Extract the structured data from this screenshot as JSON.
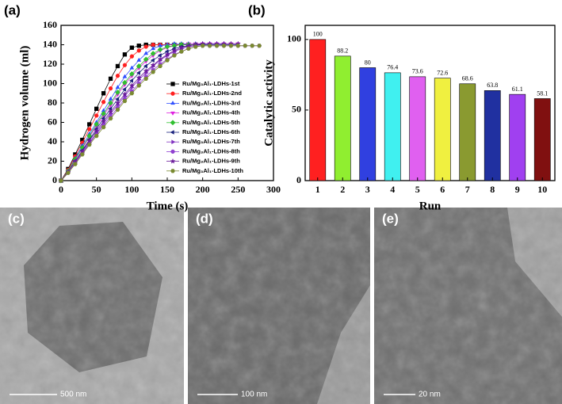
{
  "chart_data": [
    {
      "type": "line",
      "panel": "(a)",
      "x_label": "Time (s)",
      "y_label": "Hydrogen volume (ml)",
      "xlim": [
        0,
        300
      ],
      "xticks": [
        0,
        50,
        100,
        150,
        200,
        250,
        300
      ],
      "ylim": [
        0,
        160
      ],
      "yticks": [
        0,
        20,
        40,
        60,
        80,
        100,
        120,
        140,
        160
      ],
      "series": [
        {
          "name": "Ru/Mg₃Al₁-LDHs-1st",
          "color": "#000000",
          "marker": "square",
          "x": [
            0,
            10,
            20,
            30,
            40,
            50,
            60,
            70,
            80,
            90,
            100,
            110,
            120,
            130,
            140,
            150,
            160,
            170,
            180,
            190
          ],
          "values": [
            0,
            12,
            27,
            42,
            58,
            74,
            90,
            105,
            118,
            130,
            137,
            139,
            140,
            140,
            140,
            140,
            140,
            140,
            140,
            140
          ]
        },
        {
          "name": "Ru/Mg₃Al₁-LDHs-2nd",
          "color": "#ff2020",
          "marker": "circle",
          "x": [
            0,
            10,
            20,
            30,
            40,
            50,
            60,
            70,
            80,
            90,
            100,
            110,
            120,
            130,
            140,
            150,
            160,
            170,
            180,
            190,
            200
          ],
          "values": [
            0,
            11,
            25,
            39,
            53,
            67,
            81,
            95,
            108,
            119,
            128,
            134,
            138,
            140,
            140,
            140,
            140,
            140,
            140,
            140,
            140
          ]
        },
        {
          "name": "Ru/Mg₃Al₁-LDHs-3rd",
          "color": "#3050ff",
          "marker": "triangle-up",
          "x": [
            0,
            10,
            20,
            30,
            40,
            50,
            60,
            70,
            80,
            90,
            100,
            110,
            120,
            130,
            140,
            150,
            160,
            170,
            180,
            190,
            200,
            210,
            220,
            230
          ],
          "values": [
            0,
            10,
            23,
            36,
            48,
            60,
            72,
            84,
            96,
            107,
            116,
            124,
            131,
            136,
            139,
            140,
            141,
            141,
            141,
            141,
            141,
            141,
            141,
            141
          ]
        },
        {
          "name": "Ru/Mg₃Al₁-LDHs-4th",
          "color": "#e020e0",
          "marker": "triangle-down",
          "x": [
            0,
            10,
            20,
            30,
            40,
            50,
            60,
            70,
            80,
            90,
            100,
            110,
            120,
            130,
            140,
            150,
            160,
            170,
            180,
            190,
            200,
            210,
            220,
            230,
            240,
            250
          ],
          "values": [
            0,
            10,
            22,
            33,
            45,
            56,
            67,
            78,
            89,
            99,
            108,
            116,
            123,
            129,
            134,
            137,
            139,
            140,
            141,
            141,
            141,
            141,
            141,
            141,
            141,
            141
          ]
        },
        {
          "name": "Ru/Mg₃Al₁-LDHs-5th",
          "color": "#30c030",
          "marker": "diamond",
          "x": [
            0,
            10,
            20,
            30,
            40,
            50,
            60,
            70,
            80,
            90,
            100,
            110,
            120,
            130,
            140,
            150,
            160,
            170,
            180,
            190,
            200
          ],
          "values": [
            0,
            10,
            22,
            34,
            46,
            58,
            69,
            80,
            91,
            101,
            110,
            118,
            125,
            131,
            135,
            138,
            139,
            140,
            140,
            140,
            140
          ]
        },
        {
          "name": "Ru/Mg₃Al₁-LDHs-6th",
          "color": "#1a237e",
          "marker": "triangle-left",
          "x": [
            0,
            10,
            20,
            30,
            40,
            50,
            60,
            70,
            80,
            90,
            100,
            110,
            120,
            130,
            140,
            150,
            160,
            170,
            180,
            190,
            200,
            210,
            220,
            230,
            240,
            250
          ],
          "values": [
            0,
            9,
            20,
            31,
            42,
            53,
            64,
            74,
            84,
            94,
            103,
            111,
            118,
            124,
            129,
            133,
            136,
            138,
            139,
            140,
            140,
            140,
            140,
            140,
            140,
            140
          ]
        },
        {
          "name": "Ru/Mg₃Al₁-LDHs-7th",
          "color": "#8030c0",
          "marker": "triangle-right",
          "x": [
            0,
            10,
            20,
            30,
            40,
            50,
            60,
            70,
            80,
            90,
            100,
            110,
            120,
            130,
            140,
            150,
            160,
            170,
            180,
            190,
            200,
            210,
            220,
            230,
            240,
            250,
            260,
            270,
            280
          ],
          "values": [
            0,
            9,
            19,
            29,
            39,
            49,
            59,
            69,
            78,
            87,
            96,
            104,
            111,
            118,
            124,
            129,
            133,
            136,
            138,
            139,
            139,
            139,
            139,
            139,
            139,
            139,
            139,
            139,
            139
          ]
        },
        {
          "name": "Ru/Mg₃Al₁-LDHs-8th",
          "color": "#9040d0",
          "marker": "circle",
          "x": [
            0,
            10,
            20,
            30,
            40,
            50,
            60,
            70,
            80,
            90,
            100,
            110,
            120,
            130,
            140,
            150,
            160,
            170,
            180,
            190,
            200,
            210,
            220,
            230,
            240,
            250,
            260,
            270,
            280
          ],
          "values": [
            0,
            8,
            18,
            28,
            38,
            48,
            57,
            66,
            75,
            84,
            92,
            100,
            107,
            114,
            120,
            125,
            130,
            133,
            136,
            138,
            139,
            139,
            139,
            139,
            139,
            139,
            139,
            139,
            139
          ]
        },
        {
          "name": "Ru/Mg₃Al₁-LDHs-9th",
          "color": "#6a1b9a",
          "marker": "star",
          "x": [
            0,
            10,
            20,
            30,
            40,
            50,
            60,
            70,
            80,
            90,
            100,
            110,
            120,
            130,
            140,
            150,
            160,
            170,
            180,
            190,
            200,
            210,
            220,
            230,
            240,
            250
          ],
          "values": [
            0,
            9,
            20,
            30,
            41,
            51,
            61,
            71,
            80,
            89,
            98,
            106,
            113,
            119,
            125,
            130,
            134,
            137,
            139,
            140,
            141,
            141,
            141,
            141,
            141,
            141
          ]
        },
        {
          "name": "Ru/Mg₃Al₁-LDHs-10th",
          "color": "#7a8a30",
          "marker": "hexagon",
          "x": [
            0,
            10,
            20,
            30,
            40,
            50,
            60,
            70,
            80,
            90,
            100,
            110,
            120,
            130,
            140,
            150,
            160,
            170,
            180,
            190,
            200,
            210,
            220,
            230,
            240,
            250,
            260,
            270,
            280
          ],
          "values": [
            0,
            8,
            17,
            27,
            37,
            46,
            55,
            64,
            73,
            82,
            90,
            98,
            105,
            112,
            118,
            124,
            129,
            133,
            136,
            138,
            139,
            139,
            139,
            139,
            139,
            139,
            139,
            139,
            139
          ]
        }
      ]
    },
    {
      "type": "bar",
      "panel": "(b)",
      "x_label": "Run",
      "y_label": "Catalytic activity",
      "categories": [
        "1",
        "2",
        "3",
        "4",
        "5",
        "6",
        "7",
        "8",
        "9",
        "10"
      ],
      "values": [
        100,
        88.2,
        80,
        76.4,
        73.6,
        72.6,
        68.6,
        63.8,
        61.1,
        58.1
      ],
      "colors": [
        "#ff2020",
        "#90ee30",
        "#3040e0",
        "#40f0f0",
        "#e060f0",
        "#f0f040",
        "#8a9a30",
        "#2030a0",
        "#a040f0",
        "#801010"
      ],
      "ylim": [
        0,
        110
      ],
      "yticks": [
        0,
        50,
        100
      ]
    }
  ],
  "images": [
    {
      "label": "(c)",
      "scale": "500 nm"
    },
    {
      "label": "(d)",
      "scale": "100 nm"
    },
    {
      "label": "(e)",
      "scale": "20 nm"
    }
  ]
}
